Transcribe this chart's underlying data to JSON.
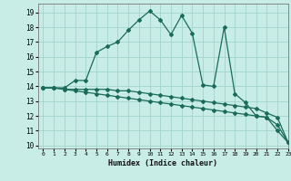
{
  "xlabel": "Humidex (Indice chaleur)",
  "xlim": [
    -0.5,
    23
  ],
  "ylim": [
    9.8,
    19.6
  ],
  "yticks": [
    10,
    11,
    12,
    13,
    14,
    15,
    16,
    17,
    18,
    19
  ],
  "xticks": [
    0,
    1,
    2,
    3,
    4,
    5,
    6,
    7,
    8,
    9,
    10,
    11,
    12,
    13,
    14,
    15,
    16,
    17,
    18,
    19,
    20,
    21,
    22,
    23
  ],
  "bg_color": "#c8ece6",
  "grid_color": "#a0d4cc",
  "line_color": "#1a6b5a",
  "line1_x": [
    0,
    1,
    2,
    3,
    4,
    5,
    6,
    7,
    8,
    9,
    10,
    11,
    12,
    13,
    14,
    15,
    16,
    17,
    18,
    19,
    20,
    21,
    22,
    23
  ],
  "line1_y": [
    13.9,
    13.9,
    13.9,
    14.4,
    14.4,
    16.3,
    16.7,
    17.0,
    17.8,
    18.5,
    19.1,
    18.5,
    17.5,
    18.8,
    17.6,
    14.1,
    14.0,
    18.0,
    13.5,
    12.9,
    12.0,
    11.9,
    11.0,
    10.2
  ],
  "line2_x": [
    0,
    1,
    2,
    3,
    4,
    5,
    6,
    7,
    8,
    9,
    10,
    11,
    12,
    13,
    14,
    15,
    16,
    17,
    18,
    19,
    20,
    21,
    22,
    23
  ],
  "line2_y": [
    13.9,
    13.9,
    13.8,
    13.8,
    13.8,
    13.8,
    13.8,
    13.7,
    13.7,
    13.6,
    13.5,
    13.4,
    13.3,
    13.2,
    13.1,
    13.0,
    12.9,
    12.8,
    12.7,
    12.6,
    12.5,
    12.2,
    11.9,
    10.2
  ],
  "line3_x": [
    0,
    1,
    2,
    3,
    4,
    5,
    6,
    7,
    8,
    9,
    10,
    11,
    12,
    13,
    14,
    15,
    16,
    17,
    18,
    19,
    20,
    21,
    22,
    23
  ],
  "line3_y": [
    13.9,
    13.9,
    13.8,
    13.7,
    13.6,
    13.5,
    13.4,
    13.3,
    13.2,
    13.1,
    13.0,
    12.9,
    12.8,
    12.7,
    12.6,
    12.5,
    12.4,
    12.3,
    12.2,
    12.1,
    12.0,
    11.9,
    11.4,
    10.2
  ]
}
